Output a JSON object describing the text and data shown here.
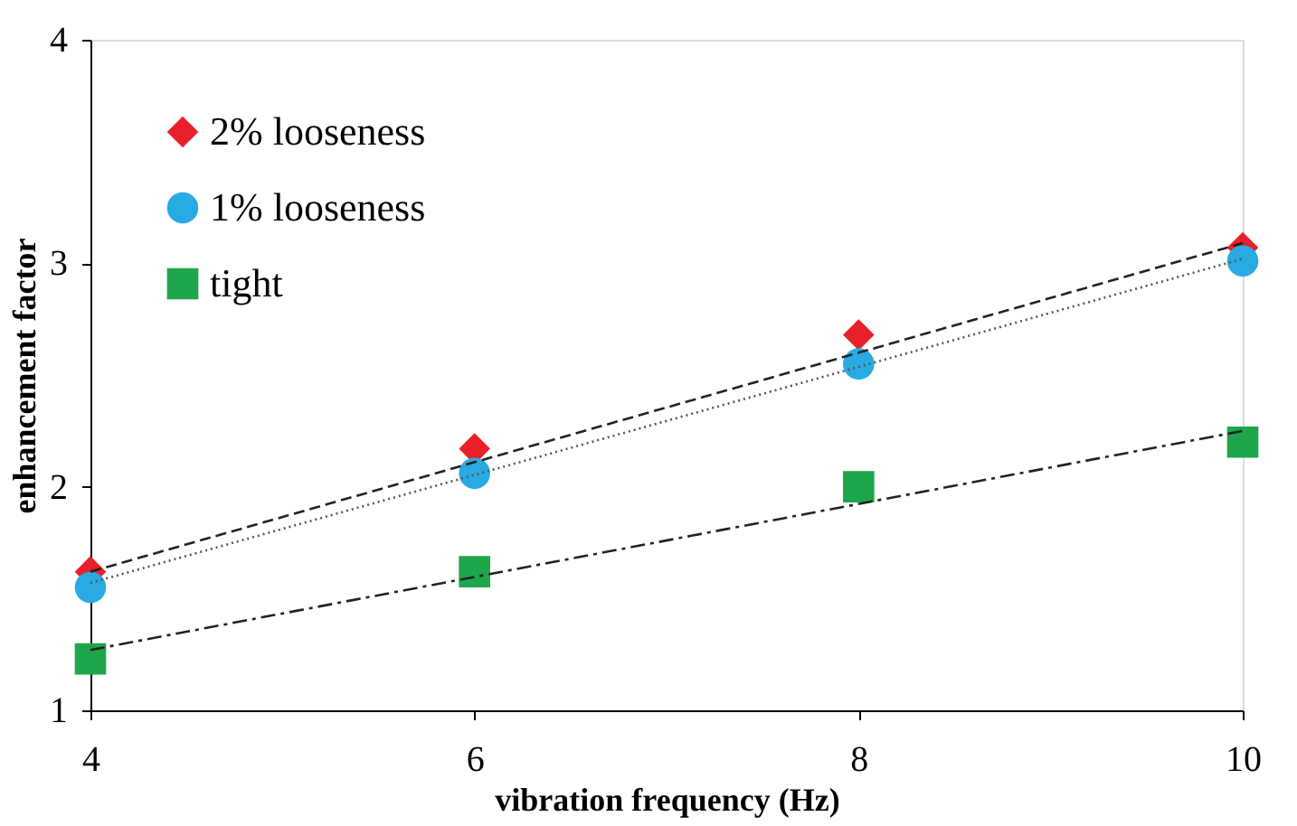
{
  "chart_data": {
    "type": "scatter",
    "xlabel": "vibration frequency (Hz)",
    "ylabel": "enhancement factor",
    "xlim": [
      4,
      10
    ],
    "xticks": [
      4,
      6,
      8,
      10
    ],
    "ylim": [
      1,
      4
    ],
    "yticks": [
      1,
      2,
      3,
      4
    ],
    "grid": false,
    "legend": "top left",
    "series": [
      {
        "name": "2% looseness",
        "color": "#e8202a",
        "marker": "diamond",
        "x": [
          4,
          6,
          8,
          10
        ],
        "values": [
          1.62,
          2.17,
          2.68,
          3.07
        ]
      },
      {
        "name": "1% looseness",
        "color": "#2aaae2",
        "marker": "circle",
        "x": [
          4,
          6,
          8,
          10
        ],
        "values": [
          1.55,
          2.06,
          2.55,
          3.01
        ]
      },
      {
        "name": "tight",
        "color": "#1fa64a",
        "marker": "square",
        "x": [
          4,
          6,
          8,
          10
        ],
        "values": [
          1.23,
          1.62,
          2.0,
          2.2
        ]
      },
      {
        "type": "line",
        "color": "#222222",
        "line_style": "dashed",
        "marker": "none",
        "x": [
          4,
          10
        ],
        "values": [
          1.62,
          3.09
        ]
      },
      {
        "type": "line",
        "color": "#555555",
        "line_style": "dotted",
        "marker": "none",
        "x": [
          4,
          10
        ],
        "values": [
          1.57,
          3.02
        ]
      },
      {
        "type": "line",
        "color": "#222222",
        "line_style": "dashdot",
        "marker": "none",
        "x": [
          4,
          10
        ],
        "values": [
          1.27,
          2.25
        ]
      }
    ]
  }
}
